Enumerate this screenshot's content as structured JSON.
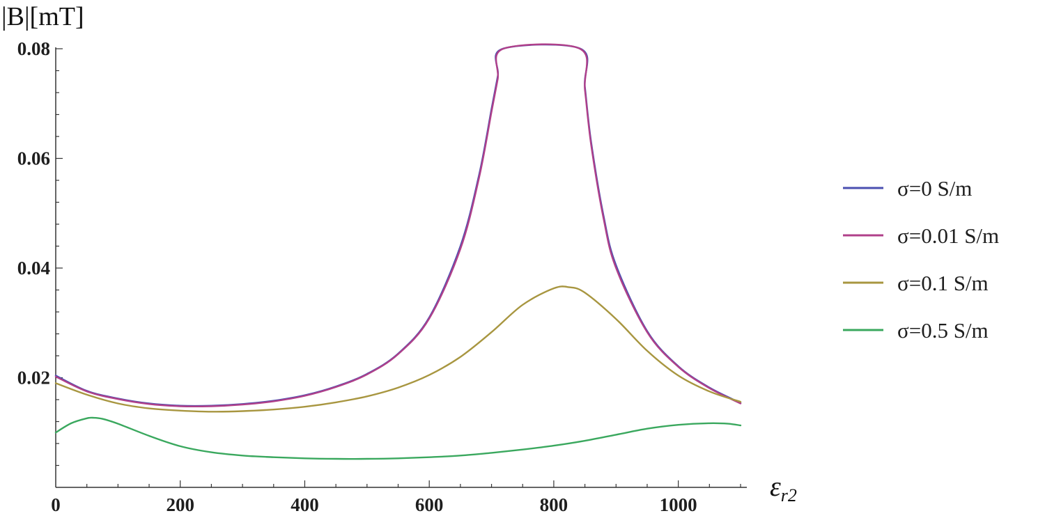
{
  "chart_data": {
    "type": "line",
    "ylabel": "|B|[mT]",
    "xlabel_main": "ε",
    "xlabel_sub": "r2",
    "xlim": [
      0,
      1100
    ],
    "ylim": [
      0,
      0.08
    ],
    "xticks": [
      0,
      200,
      400,
      600,
      800,
      1000
    ],
    "xtick_labels": [
      "0",
      "200",
      "400",
      "600",
      "800",
      "1000"
    ],
    "yticks": [
      0.02,
      0.04,
      0.06,
      0.08
    ],
    "ytick_labels": [
      "0.02",
      "0.04",
      "0.06",
      "0.08"
    ],
    "grid": false,
    "legend_position": "right",
    "series": [
      {
        "name": "σ=0 S/m",
        "color": "#4a4fb0",
        "x": [
          0,
          50,
          100,
          150,
          200,
          250,
          300,
          350,
          400,
          450,
          500,
          550,
          600,
          650,
          680,
          700,
          710,
          718,
          843,
          850,
          860,
          880,
          900,
          950,
          1000,
          1050,
          1100
        ],
        "y": [
          0.0204,
          0.0176,
          0.0162,
          0.0153,
          0.0149,
          0.0149,
          0.0152,
          0.0158,
          0.0168,
          0.0184,
          0.0207,
          0.0244,
          0.031,
          0.044,
          0.057,
          0.069,
          0.075,
          0.08,
          0.08,
          0.073,
          0.063,
          0.0495,
          0.0405,
          0.0285,
          0.0221,
          0.0182,
          0.0154
        ]
      },
      {
        "name": "σ=0.01 S/m",
        "color": "#b0408a",
        "x": [
          0,
          50,
          100,
          150,
          200,
          250,
          300,
          350,
          400,
          450,
          500,
          550,
          600,
          650,
          680,
          700,
          710,
          719,
          842,
          850,
          860,
          880,
          900,
          950,
          1000,
          1050,
          1100
        ],
        "y": [
          0.0202,
          0.0175,
          0.0161,
          0.0152,
          0.0148,
          0.0148,
          0.0151,
          0.0157,
          0.0167,
          0.0183,
          0.0206,
          0.0243,
          0.0308,
          0.0435,
          0.0565,
          0.0685,
          0.0745,
          0.08,
          0.08,
          0.0725,
          0.0625,
          0.049,
          0.04,
          0.0283,
          0.022,
          0.0181,
          0.0153
        ]
      },
      {
        "name": "σ=0.1 S/m",
        "color": "#a89640",
        "x": [
          0,
          50,
          100,
          150,
          200,
          250,
          300,
          350,
          400,
          450,
          500,
          550,
          600,
          650,
          700,
          750,
          800,
          825,
          850,
          900,
          950,
          1000,
          1050,
          1100
        ],
        "y": [
          0.019,
          0.0169,
          0.0153,
          0.0144,
          0.014,
          0.0138,
          0.0139,
          0.0142,
          0.0147,
          0.0155,
          0.0166,
          0.0182,
          0.0205,
          0.0238,
          0.0283,
          0.0333,
          0.0363,
          0.0365,
          0.0355,
          0.0307,
          0.0249,
          0.0204,
          0.0175,
          0.0156
        ]
      },
      {
        "name": "σ=0.5 S/m",
        "color": "#3aa85e",
        "x": [
          0,
          25,
          50,
          60,
          75,
          100,
          150,
          200,
          250,
          300,
          350,
          400,
          450,
          500,
          550,
          600,
          650,
          700,
          750,
          800,
          850,
          900,
          950,
          1000,
          1050,
          1080,
          1100
        ],
        "y": [
          0.01,
          0.0117,
          0.0126,
          0.0127,
          0.0125,
          0.0116,
          0.0094,
          0.0075,
          0.0064,
          0.0058,
          0.0055,
          0.0053,
          0.0052,
          0.0052,
          0.0053,
          0.0055,
          0.0058,
          0.0063,
          0.0069,
          0.0076,
          0.0085,
          0.0096,
          0.0107,
          0.0114,
          0.0117,
          0.0116,
          0.0113
        ]
      }
    ]
  }
}
